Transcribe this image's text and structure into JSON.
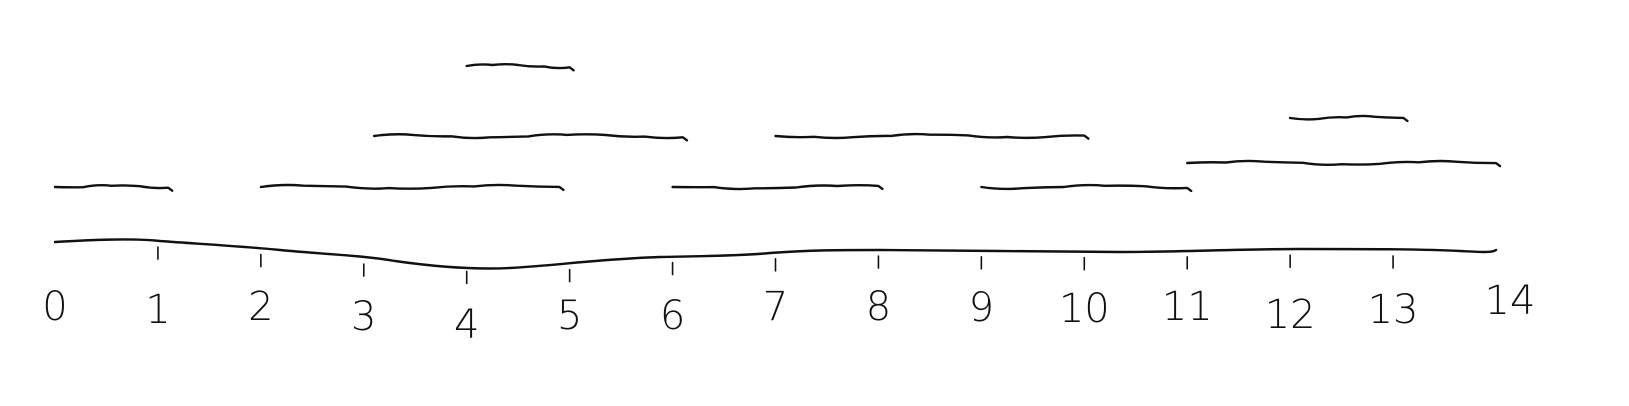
{
  "timeline": {
    "min": 0,
    "max": 14,
    "labels": [
      "0",
      "1",
      "2",
      "3",
      "4",
      "5",
      "6",
      "7",
      "8",
      "9",
      "10",
      "11",
      "12",
      "13",
      "14"
    ]
  },
  "intervals": [
    {
      "start": 0.0,
      "end": 1.1,
      "row": 1
    },
    {
      "start": 2.0,
      "end": 4.9,
      "row": 1
    },
    {
      "start": 6.0,
      "end": 8.0,
      "row": 1
    },
    {
      "start": 9.0,
      "end": 11.0,
      "row": 1
    },
    {
      "start": 11.0,
      "end": 14.0,
      "row": 2
    },
    {
      "start": 3.1,
      "end": 6.1,
      "row": 3
    },
    {
      "start": 7.0,
      "end": 10.0,
      "row": 3
    },
    {
      "start": 12.0,
      "end": 13.1,
      "row": 4
    },
    {
      "start": 4.0,
      "end": 5.0,
      "row": 5
    }
  ],
  "colors": {
    "ink": "#111111",
    "background": "#ffffff"
  }
}
